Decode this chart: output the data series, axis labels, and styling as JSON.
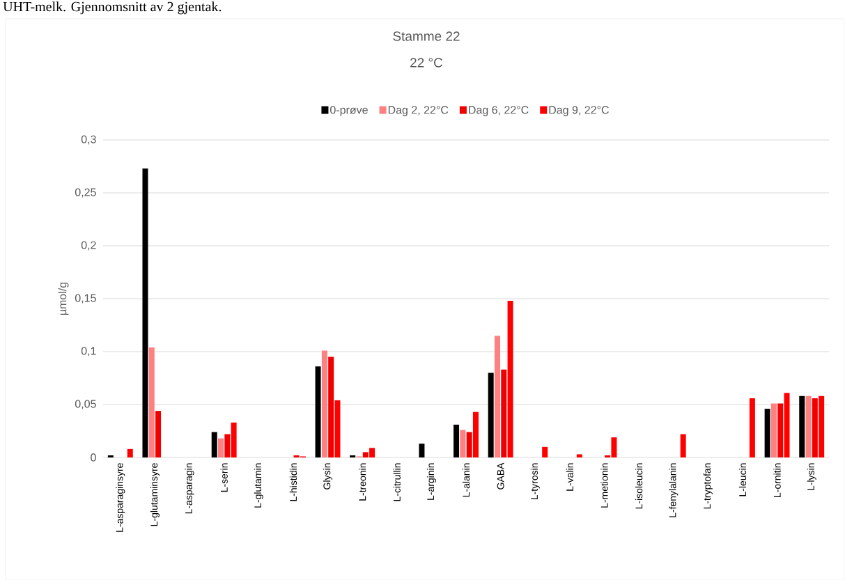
{
  "chart_data": {
    "type": "bar",
    "title": "Stamme 22",
    "subtitle": "22 °C",
    "ylabel": "µmol/g",
    "annotations": [
      "UHT-melk. Gjennomsnitt av 2 gjentak."
    ],
    "categories": [
      "L-asparaginsyre",
      "L-glutaminsyre",
      "L-asparagin",
      "L-serin",
      "L-glutamin",
      "L-histidin",
      "Glysin",
      "L-treonin",
      "L-citrullin",
      "L-arginin",
      "L-alanin",
      "GABA",
      "L-tyrosin",
      "L-valin",
      "L-metionin",
      "L-isoleucin",
      "L-fenylalanin",
      "L-tryptofan",
      "L-leucin",
      "L-ornitin",
      "L-lysin"
    ],
    "series": [
      {
        "name": "0-prøve",
        "color": "#000000",
        "values": [
          0.002,
          0.273,
          0,
          0.024,
          0,
          0,
          0.086,
          0.002,
          0,
          0.013,
          0.031,
          0.08,
          0,
          0,
          0,
          0,
          0,
          0,
          0,
          0.046,
          0.058
        ]
      },
      {
        "name": "Dag 2, 22°C",
        "color": "#ff8080",
        "values": [
          0,
          0.104,
          0,
          0.018,
          0,
          0,
          0.101,
          0.001,
          0,
          0,
          0.026,
          0.115,
          0,
          0,
          0,
          0,
          0,
          0,
          0,
          0.051,
          0.058
        ]
      },
      {
        "name": "Dag 6, 22°C",
        "color": "#f00000",
        "values": [
          0,
          0.044,
          0,
          0.022,
          0,
          0.002,
          0.095,
          0.005,
          0,
          0,
          0.024,
          0.083,
          0,
          0,
          0.002,
          0,
          0,
          0,
          0,
          0.051,
          0.056
        ]
      },
      {
        "name": "Dag 9, 22°C",
        "color": "#ff0000",
        "values": [
          0.008,
          0,
          0,
          0.033,
          0,
          0.001,
          0.054,
          0.009,
          0,
          0,
          0.043,
          0.148,
          0.01,
          0.003,
          0.019,
          0,
          0.022,
          0,
          0.056,
          0.061,
          0.058
        ]
      }
    ],
    "ylim": [
      0,
      0.3
    ],
    "yticks": [
      0,
      {
        "value": 0.05,
        "label": "0,05"
      },
      {
        "value": 0.1,
        "label": "0,1"
      },
      {
        "value": 0.15,
        "label": "0,15"
      },
      {
        "value": 0.2,
        "label": "0,2"
      },
      {
        "value": 0.25,
        "label": "0,25"
      },
      {
        "value": 0.3,
        "label": "0,3"
      }
    ],
    "grid": "y",
    "legend": "top"
  }
}
